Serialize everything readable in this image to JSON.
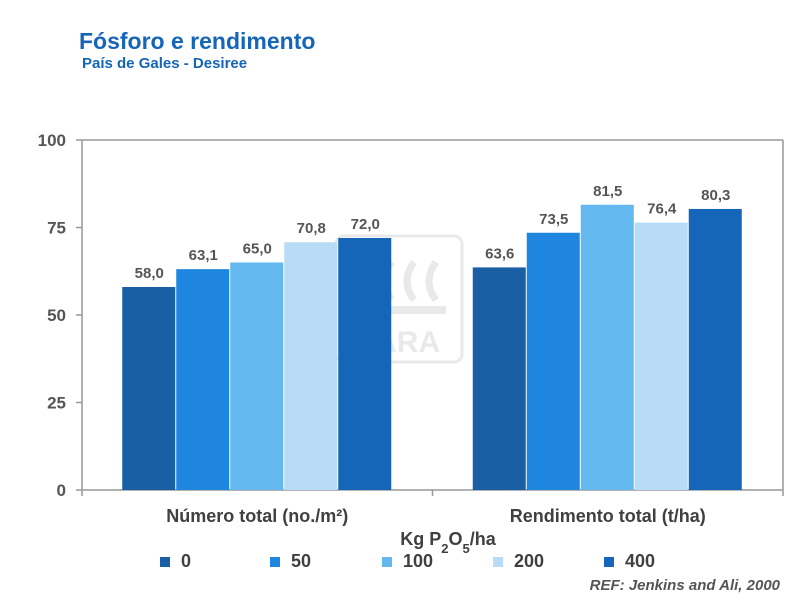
{
  "title": "Fósforo e rendimento",
  "subtitle": "País de Gales - Desiree",
  "reference": "REF: Jenkins and Ali, 2000",
  "watermark": "YARA",
  "colors": {
    "0": "#1a5fa3",
    "50": "#1e86de",
    "100": "#62b8ef",
    "200": "#b8dcf6",
    "400": "#1565b8",
    "axis": "#999999",
    "text": "#555555"
  },
  "chart_data": {
    "type": "bar",
    "title": "Fósforo e rendimento",
    "subtitle": "País de Gales - Desiree",
    "xlabel": "Kg P2O5/ha",
    "ylabel": "",
    "ylim": [
      0,
      100
    ],
    "yticks": [
      "0",
      "25",
      "50",
      "75",
      "100"
    ],
    "categories": [
      "Número total (no./m²)",
      "Rendimento total (t/ha)"
    ],
    "series": [
      {
        "name": "0",
        "values": [
          58.0,
          63.6
        ],
        "labels": [
          "58,0",
          "63,6"
        ]
      },
      {
        "name": "50",
        "values": [
          63.1,
          73.5
        ],
        "labels": [
          "63,1",
          "73,5"
        ]
      },
      {
        "name": "100",
        "values": [
          65.0,
          81.5
        ],
        "labels": [
          "65,0",
          "81,5"
        ]
      },
      {
        "name": "200",
        "values": [
          70.8,
          76.4
        ],
        "labels": [
          "70,8",
          "76,4"
        ]
      },
      {
        "name": "400",
        "values": [
          72.0,
          80.3
        ],
        "labels": [
          "72,0",
          "80,3"
        ]
      }
    ],
    "legend_position": "bottom",
    "grid": false
  }
}
